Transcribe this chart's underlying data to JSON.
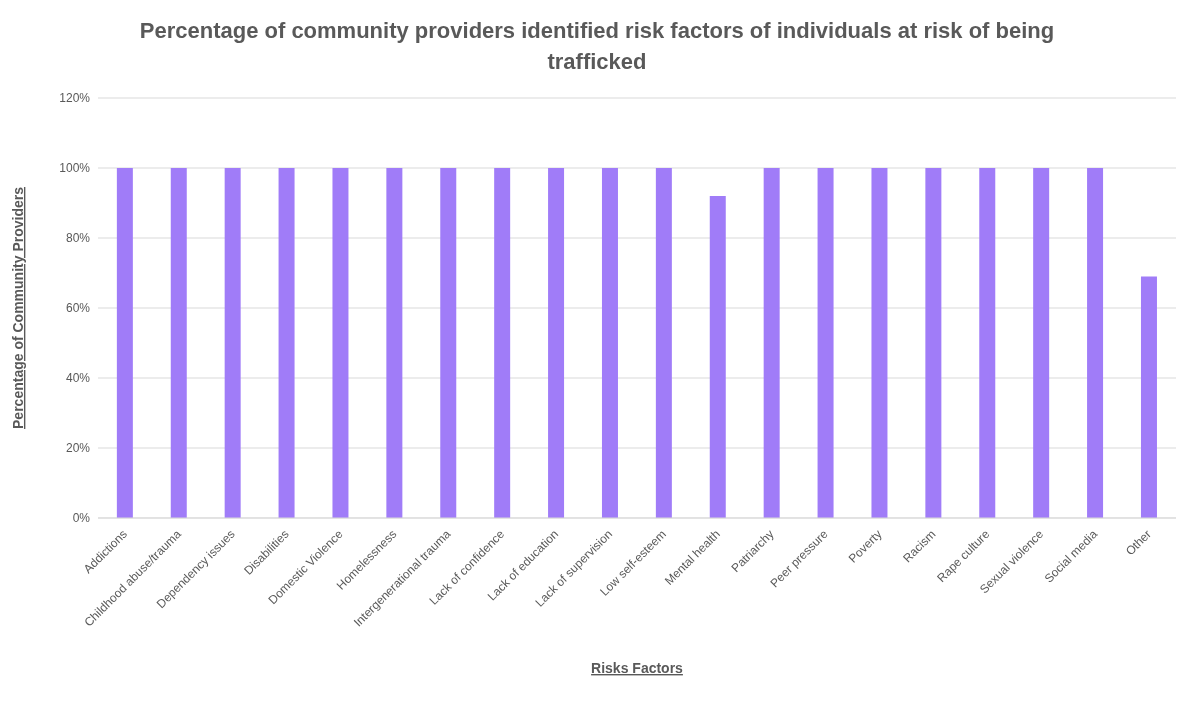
{
  "chart_data": {
    "type": "bar",
    "title": "Percentage of community providers identified risk factors of individuals at risk of being trafficked",
    "xlabel": "Risks Factors",
    "ylabel": "Percentage of Community Providers",
    "categories": [
      "Addictions",
      "Childhood abuse/trauma",
      "Dependency issues",
      "Disabilities",
      "Domestic Violence",
      "Homelessness",
      "Intergenerational trauma",
      "Lack of confidence",
      "Lack of education",
      "Lack of supervision",
      "Low self-esteem",
      "Mental health",
      "Patriarchy",
      "Peer pressure",
      "Poverty",
      "Racism",
      "Rape culture",
      "Sexual violence",
      "Social media",
      "Other"
    ],
    "values": [
      100,
      100,
      100,
      100,
      100,
      100,
      100,
      100,
      100,
      100,
      100,
      92,
      100,
      100,
      100,
      100,
      100,
      100,
      100,
      69
    ],
    "color": "#a07cf8",
    "ylim": [
      0,
      120
    ],
    "yticks": [
      {
        "value": 0,
        "label": "0%"
      },
      {
        "value": 20,
        "label": "20%"
      },
      {
        "value": 40,
        "label": "40%"
      },
      {
        "value": 60,
        "label": "60%"
      },
      {
        "value": 80,
        "label": "80%"
      },
      {
        "value": 100,
        "label": "100%"
      },
      {
        "value": 120,
        "label": "120%"
      }
    ],
    "grid": "y"
  }
}
